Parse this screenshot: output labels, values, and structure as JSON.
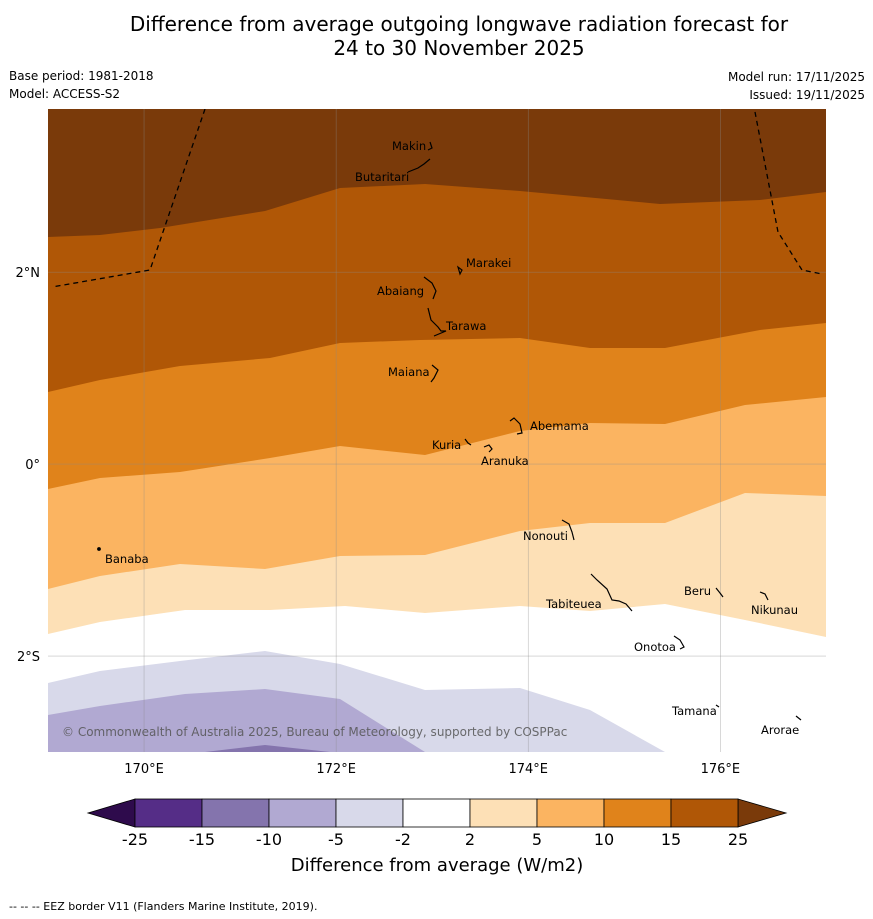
{
  "header": {
    "title_line1": "Difference from average outgoing longwave radiation forecast for",
    "title_line2": "24 to 30 November 2025",
    "base_period": "Base period: 1981-2018",
    "model": "Model: ACCESS-S2",
    "model_run": "Model run: 17/11/2025",
    "issued": "Issued: 19/11/2025"
  },
  "map": {
    "lat_range": [
      -3.0,
      3.7
    ],
    "lon_range": [
      169.0,
      177.1
    ],
    "lat_labels": [
      {
        "value": 2,
        "label": "2°N"
      },
      {
        "value": 0,
        "label": "0°"
      },
      {
        "value": -2,
        "label": "2°S"
      }
    ],
    "lon_labels": [
      {
        "value": 170,
        "label": "170°E"
      },
      {
        "value": 172,
        "label": "172°E"
      },
      {
        "value": 174,
        "label": "174°E"
      },
      {
        "value": 176,
        "label": "176°E"
      }
    ],
    "copyright": "© Commonwealth of Australia 2025, Bureau of Meteorology, supported by COSPPac",
    "islands": [
      {
        "name": "Makin",
        "lon": 173.0,
        "lat": 3.2
      },
      {
        "name": "Butaritari",
        "lon": 172.8,
        "lat": 3.05
      },
      {
        "name": "Marakei",
        "lon": 173.3,
        "lat": 2.0
      },
      {
        "name": "Abaiang",
        "lon": 172.95,
        "lat": 1.8
      },
      {
        "name": "Tarawa",
        "lon": 173.0,
        "lat": 1.4
      },
      {
        "name": "Maiana",
        "lon": 173.0,
        "lat": 0.95
      },
      {
        "name": "Abemama",
        "lon": 173.85,
        "lat": 0.4
      },
      {
        "name": "Kuria",
        "lon": 173.4,
        "lat": 0.23
      },
      {
        "name": "Aranuka",
        "lon": 173.6,
        "lat": 0.17
      },
      {
        "name": "Banaba",
        "lon": 169.55,
        "lat": -0.87
      },
      {
        "name": "Nonouti",
        "lon": 174.4,
        "lat": -0.65
      },
      {
        "name": "Tabiteuea",
        "lon": 174.9,
        "lat": -1.35
      },
      {
        "name": "Beru",
        "lon": 176.0,
        "lat": -1.3
      },
      {
        "name": "Nikunau",
        "lon": 176.45,
        "lat": -1.35
      },
      {
        "name": "Onotoa",
        "lon": 175.55,
        "lat": -1.8
      },
      {
        "name": "Tamana",
        "lon": 175.97,
        "lat": -2.5
      },
      {
        "name": "Arorae",
        "lon": 176.82,
        "lat": -2.65
      }
    ]
  },
  "colorbar": {
    "bounds": [
      "-25",
      "-15",
      "-10",
      "-5",
      "-2",
      "2",
      "5",
      "10",
      "15",
      "25"
    ],
    "colors": [
      "#552d87",
      "#8474ad",
      "#b1a9d2",
      "#d8d9ea",
      "#ffffff",
      "#fde0b6",
      "#fbb461",
      "#e0831b",
      "#b05706"
    ],
    "under_color": "#2e0b4c",
    "over_color": "#7a3a0a",
    "label": "Difference from average (W/m2)"
  },
  "footnote": "--  --  -- EEZ border V11 (Flanders Marine Institute, 2019)."
}
